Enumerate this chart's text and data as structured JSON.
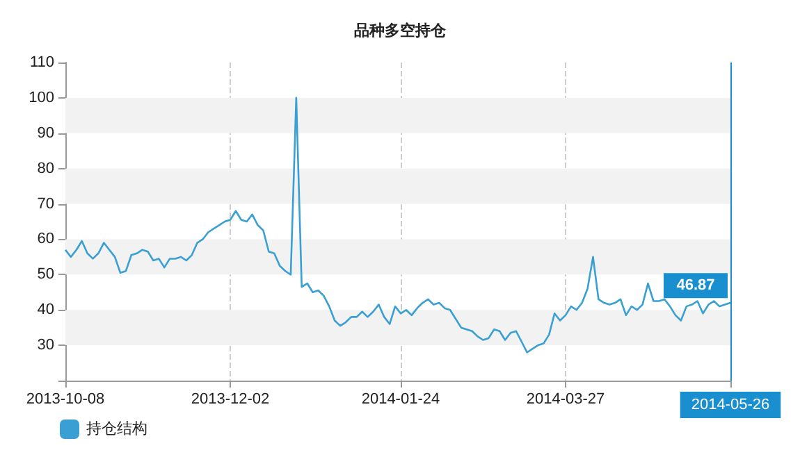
{
  "chart_data": {
    "type": "line",
    "title": "品种多空持仓",
    "categories": [
      "2013-10-08",
      null,
      null,
      null,
      null,
      null,
      null,
      null,
      null,
      null,
      null,
      null,
      null,
      null,
      null,
      null,
      null,
      null,
      null,
      null,
      null,
      null,
      null,
      null,
      null,
      null,
      null,
      null,
      null,
      null,
      "2013-12-02",
      null,
      null,
      null,
      null,
      null,
      null,
      null,
      null,
      null,
      null,
      null,
      null,
      null,
      null,
      null,
      null,
      null,
      null,
      null,
      null,
      null,
      null,
      null,
      null,
      null,
      null,
      null,
      null,
      null,
      null,
      "2014-01-24",
      null,
      null,
      null,
      null,
      null,
      null,
      null,
      null,
      null,
      null,
      null,
      null,
      null,
      null,
      null,
      null,
      null,
      null,
      null,
      null,
      null,
      null,
      null,
      null,
      null,
      null,
      null,
      null,
      null,
      "2014-03-27",
      null,
      null,
      null,
      null,
      null,
      null,
      null,
      null,
      null,
      null,
      null,
      null,
      null,
      null,
      null,
      null,
      null,
      null,
      null,
      null,
      null,
      null,
      null,
      null,
      null,
      null,
      null,
      null,
      null,
      "2014-05-26"
    ],
    "series": [
      {
        "name": "持仓结构",
        "color": "#3a9fd3",
        "values": [
          57,
          55,
          57,
          59.5,
          56,
          54.5,
          56,
          59,
          57,
          55,
          50.5,
          51,
          55.5,
          56,
          57,
          56.5,
          54,
          54.5,
          52,
          54.5,
          54.5,
          55,
          54,
          55.5,
          59,
          60,
          62,
          63,
          64,
          65,
          65.5,
          68,
          65.5,
          65,
          67,
          64,
          62.5,
          56.5,
          56,
          52.5,
          51,
          50,
          100,
          46.5,
          47.5,
          45,
          45.5,
          44,
          41,
          37,
          35.5,
          36.5,
          38,
          38,
          39.5,
          38,
          39.5,
          41.5,
          38,
          36,
          41,
          39,
          40,
          38.5,
          40.5,
          42,
          43,
          41.5,
          42,
          40.5,
          40,
          37.5,
          35,
          34.5,
          34,
          32.5,
          31.5,
          32,
          34.5,
          34,
          31.5,
          33.5,
          34,
          31,
          28,
          29,
          30,
          30.5,
          33,
          39,
          37,
          38.5,
          41,
          40,
          42,
          46,
          55,
          43,
          42,
          41.5,
          42,
          43,
          38.5,
          41,
          40,
          41.5,
          47.5,
          42.5,
          42.5,
          43,
          41,
          38.5,
          37,
          41,
          41.5,
          42.5,
          39,
          41.5,
          42.5,
          41,
          41.5,
          42
        ]
      }
    ],
    "ylim": [
      20,
      110
    ],
    "yticks": [
      {
        "value": 20,
        "label": null
      },
      30,
      40,
      50,
      60,
      70,
      80,
      90,
      100,
      110
    ],
    "grid": "x",
    "legend": "bottom left",
    "marker": "none",
    "line_style": "solid",
    "bands": [
      {
        "axis": "y",
        "from": 30,
        "to": 40,
        "color": "#f2f2f2"
      },
      {
        "axis": "y",
        "from": 50,
        "to": 60,
        "color": "#f2f2f2"
      },
      {
        "axis": "y",
        "from": 70,
        "to": 80,
        "color": "#f2f2f2"
      },
      {
        "axis": "y",
        "from": 90,
        "to": 100,
        "color": "#f2f2f2"
      }
    ],
    "ref_lines": [
      {
        "axis": "x",
        "value": "2014-05-26",
        "color": "#1a8fd0"
      }
    ],
    "annotations": [
      {
        "text": "46.87",
        "x": "2014-05-26",
        "y": 46.87
      }
    ]
  }
}
